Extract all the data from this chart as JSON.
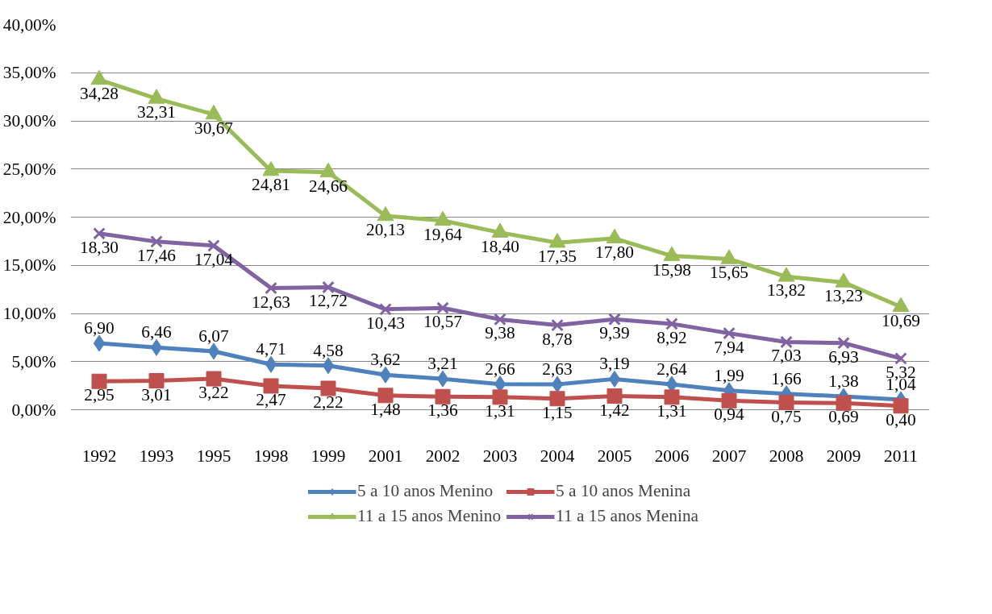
{
  "chart_data": {
    "type": "line",
    "categories": [
      "1992",
      "1993",
      "1995",
      "1998",
      "1999",
      "2001",
      "2002",
      "2003",
      "2004",
      "2005",
      "2006",
      "2007",
      "2008",
      "2009",
      "2011"
    ],
    "ylim": [
      0,
      40
    ],
    "yticks": [
      {
        "value": 0,
        "label": "0,00%"
      },
      {
        "value": 5,
        "label": "5,00%"
      },
      {
        "value": 10,
        "label": "10,00%"
      },
      {
        "value": 15,
        "label": "15,00%"
      },
      {
        "value": 20,
        "label": "20,00%"
      },
      {
        "value": 25,
        "label": "25,00%"
      },
      {
        "value": 30,
        "label": "30,00%"
      },
      {
        "value": 35,
        "label": "35,00%"
      },
      {
        "value": 40,
        "label": "40,00%"
      }
    ],
    "grid": "y",
    "legend": "bottom",
    "line_style": "solid",
    "series": [
      {
        "name": "5 a 10 anos Menino",
        "color": "#4f81bd",
        "marker": "diamond",
        "values": [
          6.9,
          6.46,
          6.07,
          4.71,
          4.58,
          3.62,
          3.21,
          2.66,
          2.63,
          3.19,
          2.64,
          1.99,
          1.66,
          1.38,
          1.04
        ],
        "value_labels": [
          "6,90",
          "6,46",
          "6,07",
          "4,71",
          "4,58",
          "3,62",
          "3,21",
          "2,66",
          "2,63",
          "3,19",
          "2,64",
          "1,99",
          "1,66",
          "1,38",
          "1,04"
        ]
      },
      {
        "name": "5 a 10 anos Menina",
        "color": "#c0504d",
        "marker": "square",
        "values": [
          2.95,
          3.01,
          3.22,
          2.47,
          2.22,
          1.48,
          1.36,
          1.31,
          1.15,
          1.42,
          1.31,
          0.94,
          0.75,
          0.69,
          0.4
        ],
        "value_labels": [
          "2,95",
          "3,01",
          "3,22",
          "2,47",
          "2,22",
          "1,48",
          "1,36",
          "1,31",
          "1,15",
          "1,42",
          "1,31",
          "0,94",
          "0,75",
          "0,69",
          "0,40"
        ]
      },
      {
        "name": "11 a 15 anos Menino",
        "color": "#9bbb59",
        "marker": "triangle",
        "values": [
          34.28,
          32.31,
          30.67,
          24.81,
          24.66,
          20.13,
          19.64,
          18.4,
          17.35,
          17.8,
          15.98,
          15.65,
          13.82,
          13.23,
          10.69
        ],
        "value_labels": [
          "34,28",
          "32,31",
          "30,67",
          "24,81",
          "24,66",
          "20,13",
          "19,64",
          "18,40",
          "17,35",
          "17,80",
          "15,98",
          "15,65",
          "13,82",
          "13,23",
          "10,69"
        ]
      },
      {
        "name": "11 a 15 anos Menina",
        "color": "#8064a2",
        "marker": "cross",
        "values": [
          18.3,
          17.46,
          17.04,
          12.63,
          12.72,
          10.43,
          10.57,
          9.38,
          8.78,
          9.39,
          8.92,
          7.94,
          7.03,
          6.93,
          5.32
        ],
        "value_labels": [
          "18,30",
          "17,46",
          "17,04",
          "12,63",
          "12,72",
          "10,43",
          "10,57",
          "9,38",
          "8,78",
          "9,39",
          "8,92",
          "7,94",
          "7,03",
          "6,93",
          "5,32"
        ]
      }
    ]
  }
}
